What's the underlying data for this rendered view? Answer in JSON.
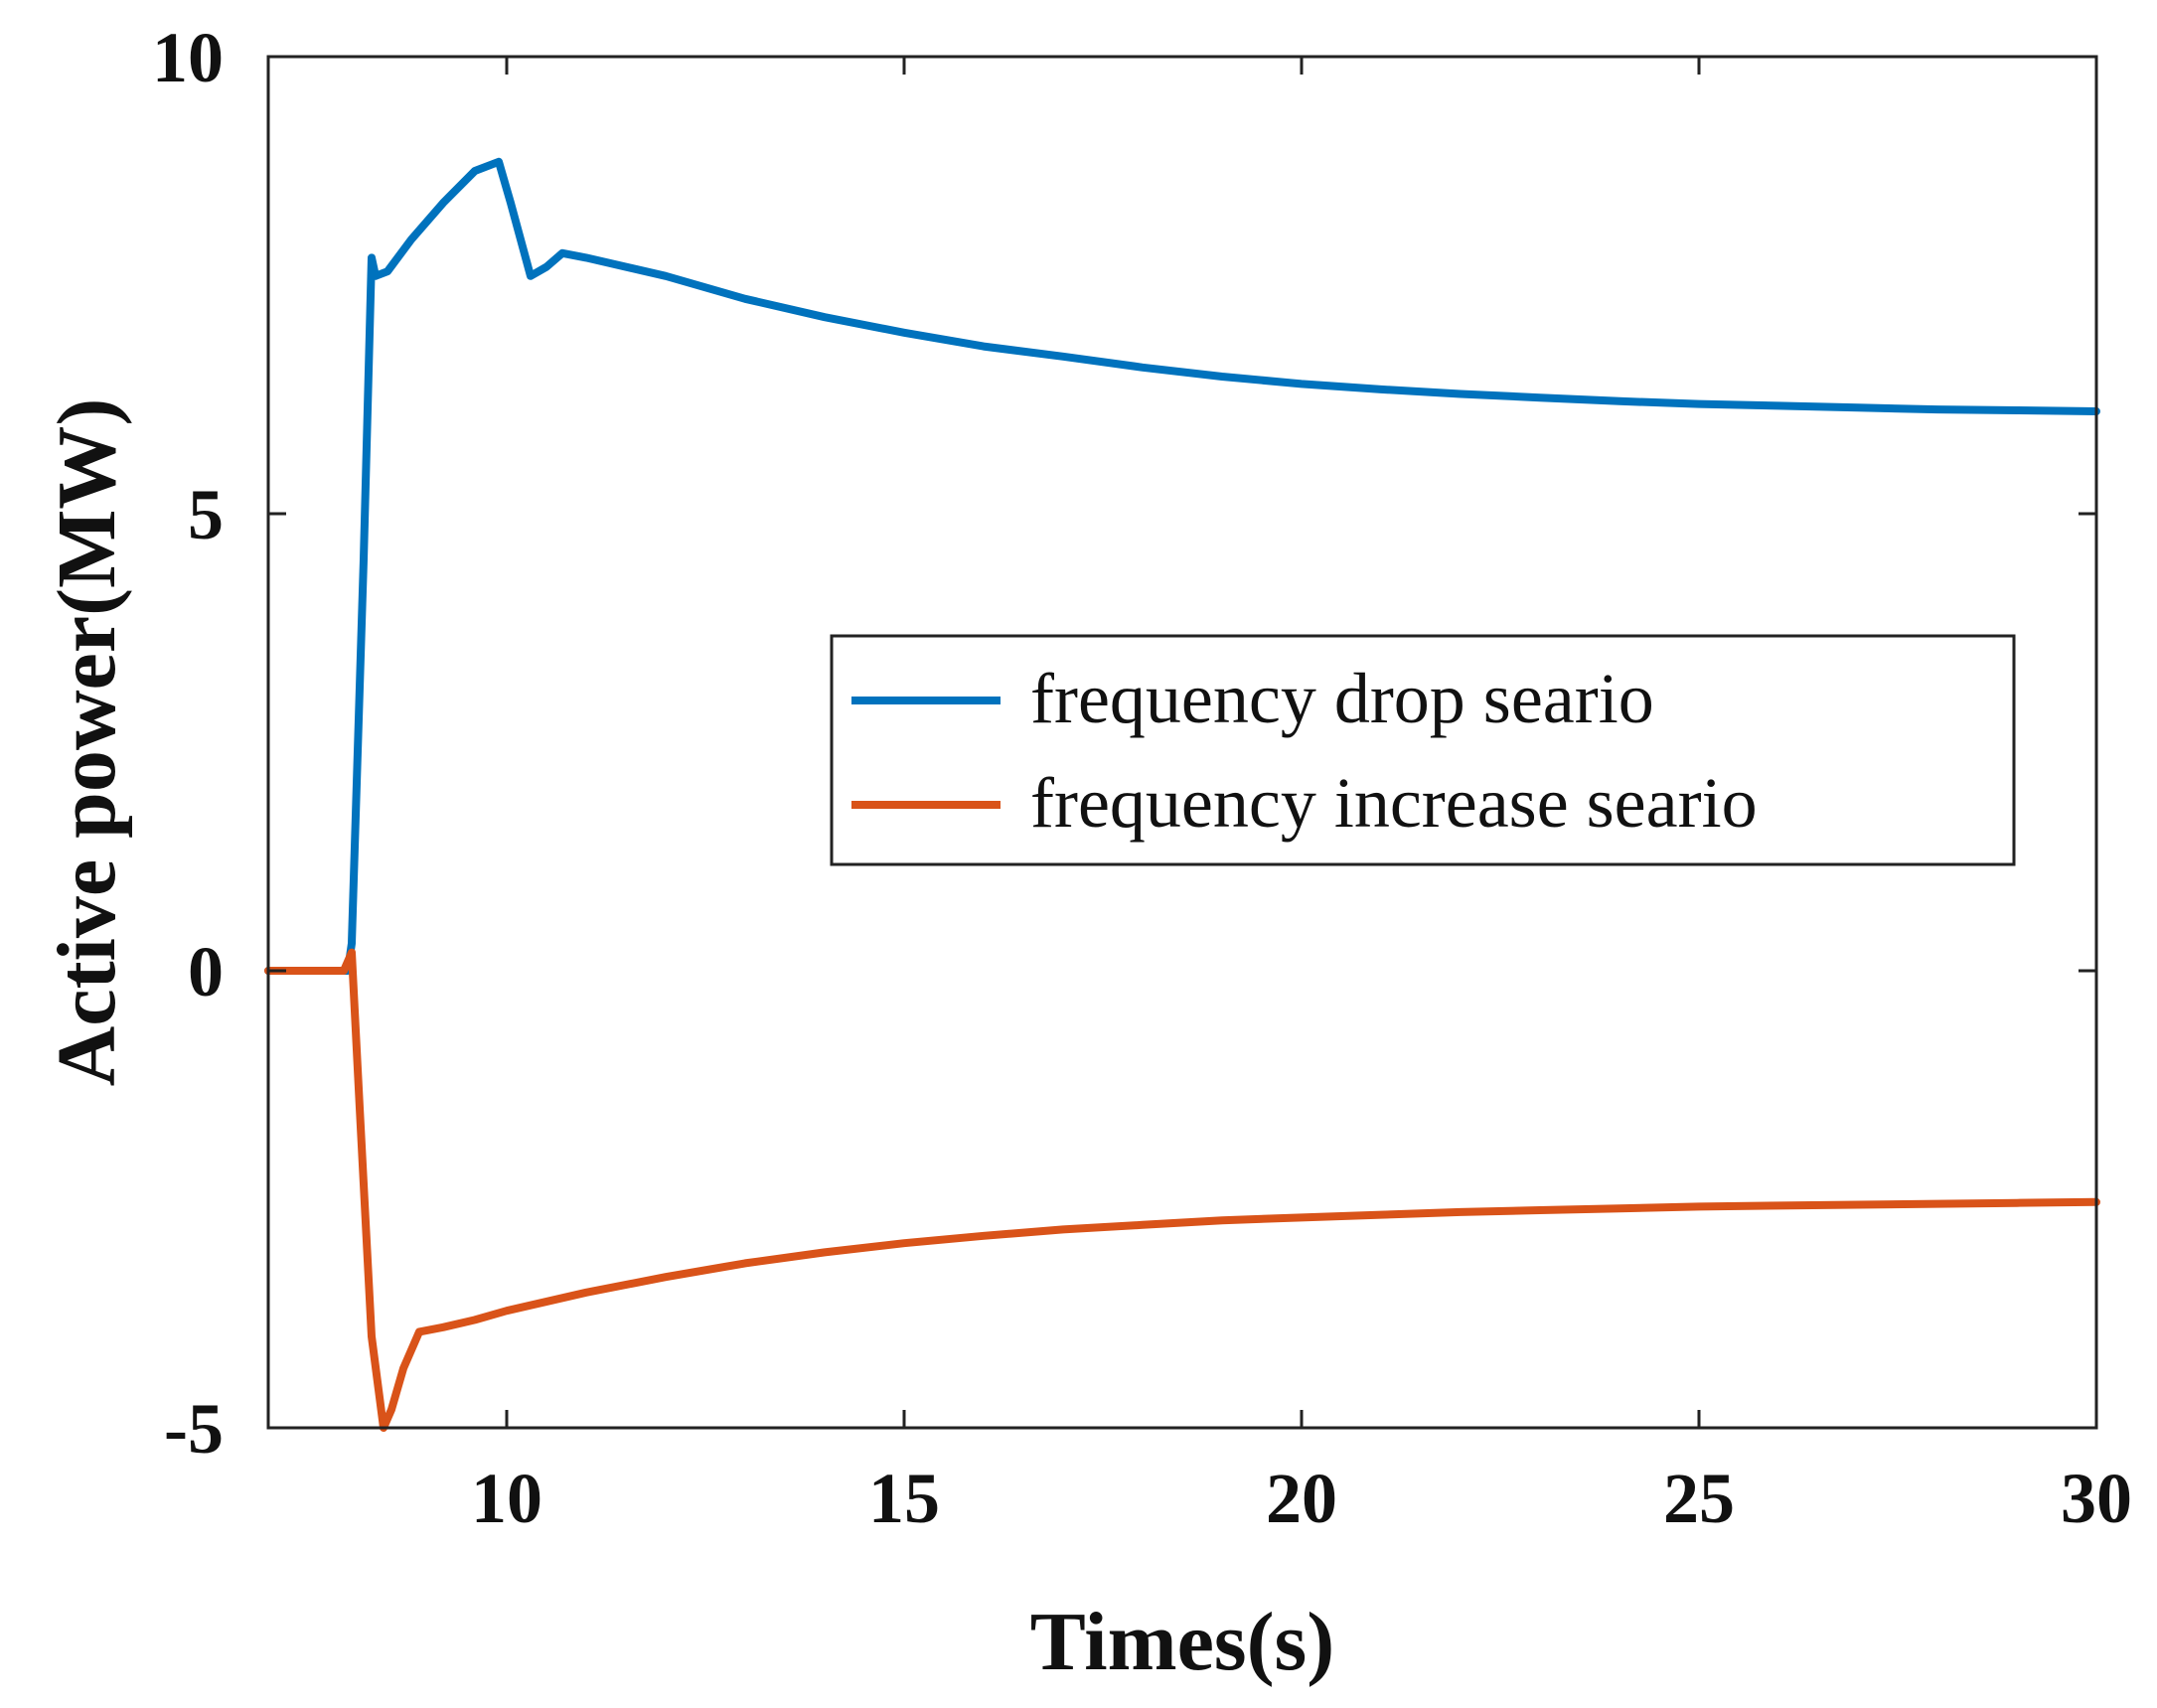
{
  "chart_data": {
    "type": "line",
    "title": "",
    "xlabel": "Times(s)",
    "ylabel": "Active power(MW)",
    "xlim": [
      7,
      30
    ],
    "ylim": [
      -5,
      10
    ],
    "xticks": [
      10,
      15,
      20,
      25,
      30
    ],
    "yticks": [
      -5,
      0,
      5,
      10
    ],
    "grid": false,
    "legend": "center-right",
    "series": [
      {
        "name": "frequency drop seario",
        "color": "#0072BD",
        "x": [
          7,
          8,
          8.05,
          8.2,
          8.3,
          8.35,
          8.5,
          8.8,
          9.2,
          9.6,
          9.9,
          9.95,
          10.05,
          10.3,
          10.5,
          10.7,
          11.0,
          12,
          13,
          14,
          15,
          16,
          17,
          18,
          19,
          20,
          21,
          22,
          23,
          24,
          25,
          26,
          27,
          28,
          29,
          30
        ],
        "y": [
          0,
          0,
          0.3,
          4.5,
          7.8,
          7.6,
          7.65,
          8.0,
          8.4,
          8.75,
          8.85,
          8.7,
          8.4,
          7.6,
          7.7,
          7.85,
          7.8,
          7.6,
          7.35,
          7.15,
          6.98,
          6.83,
          6.72,
          6.6,
          6.5,
          6.42,
          6.36,
          6.31,
          6.27,
          6.23,
          6.2,
          6.18,
          6.16,
          6.14,
          6.13,
          6.12
        ]
      },
      {
        "name": "frequency increase seario",
        "color": "#D95319",
        "x": [
          7,
          7.95,
          8.05,
          8.15,
          8.3,
          8.45,
          8.55,
          8.7,
          8.9,
          9.2,
          9.6,
          10,
          11,
          12,
          13,
          14,
          15,
          16,
          17,
          18,
          19,
          20,
          21,
          22,
          23,
          24,
          25,
          26,
          27,
          28,
          29,
          30
        ],
        "y": [
          0,
          0,
          0.2,
          -1.5,
          -4.0,
          -5.0,
          -4.8,
          -4.35,
          -3.95,
          -3.9,
          -3.82,
          -3.72,
          -3.52,
          -3.35,
          -3.2,
          -3.08,
          -2.98,
          -2.9,
          -2.83,
          -2.78,
          -2.73,
          -2.7,
          -2.67,
          -2.64,
          -2.62,
          -2.6,
          -2.58,
          -2.57,
          -2.56,
          -2.55,
          -2.54,
          -2.53
        ]
      }
    ]
  }
}
